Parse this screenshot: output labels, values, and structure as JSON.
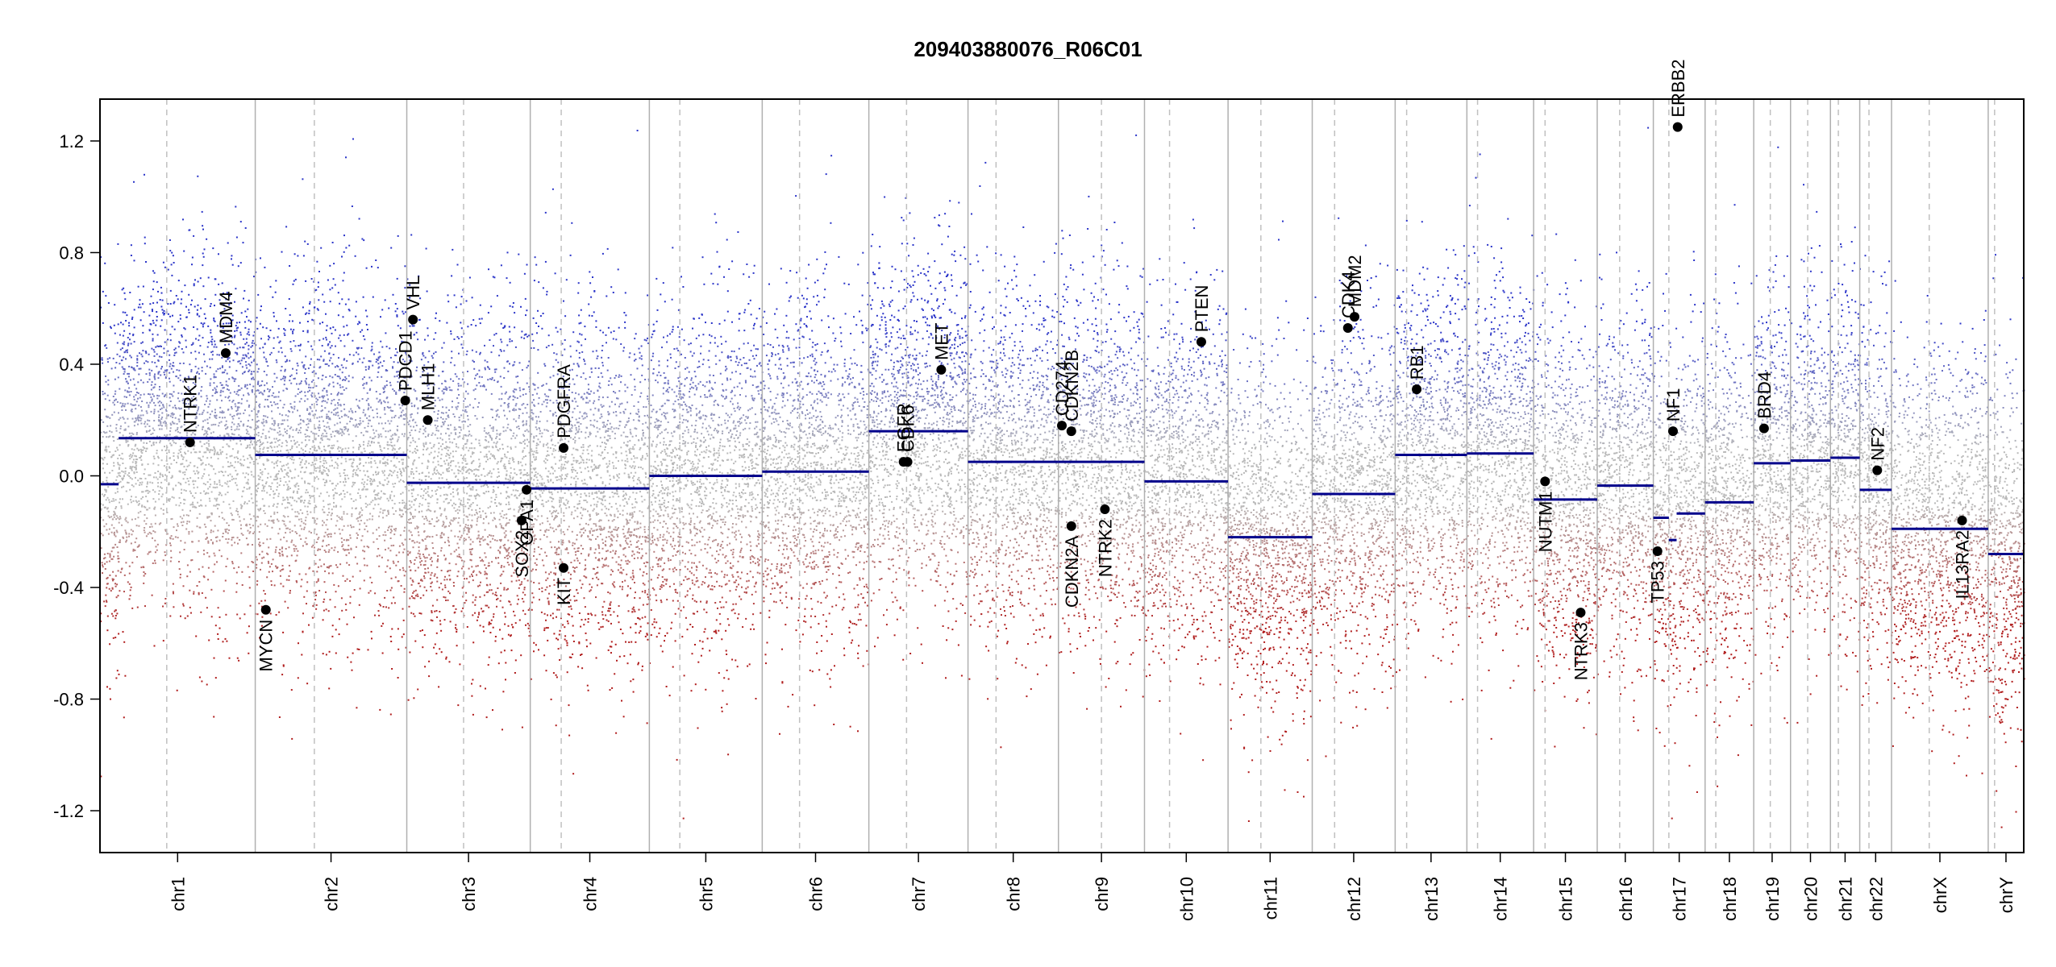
{
  "chart_data": {
    "type": "scatter",
    "title": "209403880076_R06C01",
    "xlabel": "",
    "ylabel": "",
    "ylim": [
      -1.35,
      1.35
    ],
    "y_ticks": [
      1.2,
      0.8,
      0.4,
      0.0,
      -0.4,
      -0.8,
      -1.2
    ],
    "y_tick_labels": [
      "1.2",
      "0.8",
      "0.4",
      "0.0",
      "-0.4",
      "-0.8",
      "-1.2"
    ],
    "grid": false,
    "colors": {
      "gain": "#2b35c9",
      "loss": "#b01c1c",
      "neutral": "#b9b9b9",
      "segment": "#00008b",
      "separator": "#b0b0b0",
      "centromere": "#c0c0c0",
      "gene_point": "#000000"
    },
    "chromosomes": [
      {
        "name": "chr1",
        "size": 249,
        "centromere": 0.43
      },
      {
        "name": "chr2",
        "size": 243,
        "centromere": 0.39
      },
      {
        "name": "chr3",
        "size": 198,
        "centromere": 0.46
      },
      {
        "name": "chr4",
        "size": 191,
        "centromere": 0.26
      },
      {
        "name": "chr5",
        "size": 181,
        "centromere": 0.27
      },
      {
        "name": "chr6",
        "size": 171,
        "centromere": 0.35
      },
      {
        "name": "chr7",
        "size": 159,
        "centromere": 0.38
      },
      {
        "name": "chr8",
        "size": 145,
        "centromere": 0.31
      },
      {
        "name": "chr9",
        "size": 138,
        "centromere": 0.5
      },
      {
        "name": "chr10",
        "size": 134,
        "centromere": 0.3
      },
      {
        "name": "chr11",
        "size": 135,
        "centromere": 0.39
      },
      {
        "name": "chr12",
        "size": 133,
        "centromere": 0.27
      },
      {
        "name": "chr13",
        "size": 115,
        "centromere": 0.16
      },
      {
        "name": "chr14",
        "size": 107,
        "centromere": 0.16
      },
      {
        "name": "chr15",
        "size": 102,
        "centromere": 0.18
      },
      {
        "name": "chr16",
        "size": 90,
        "centromere": 0.4
      },
      {
        "name": "chr17",
        "size": 83,
        "centromere": 0.3
      },
      {
        "name": "chr18",
        "size": 78,
        "centromere": 0.22
      },
      {
        "name": "chr19",
        "size": 59,
        "centromere": 0.45
      },
      {
        "name": "chr20",
        "size": 64,
        "centromere": 0.43
      },
      {
        "name": "chr21",
        "size": 47,
        "centromere": 0.27
      },
      {
        "name": "chr22",
        "size": 51,
        "centromere": 0.29
      },
      {
        "name": "chrX",
        "size": 155,
        "centromere": 0.39
      },
      {
        "name": "chrY",
        "size": 57,
        "centromere": 0.18
      }
    ],
    "segments": [
      {
        "chr": "chr1",
        "start": 0,
        "end": 0.12,
        "value": -0.03
      },
      {
        "chr": "chr1",
        "start": 0.12,
        "end": 1,
        "value": 0.135
      },
      {
        "chr": "chr2",
        "start": 0,
        "end": 1,
        "value": 0.075
      },
      {
        "chr": "chr3",
        "start": 0,
        "end": 1,
        "value": -0.025
      },
      {
        "chr": "chr4",
        "start": 0,
        "end": 1,
        "value": -0.045
      },
      {
        "chr": "chr5",
        "start": 0,
        "end": 1,
        "value": 0.0
      },
      {
        "chr": "chr6",
        "start": 0,
        "end": 1,
        "value": 0.015
      },
      {
        "chr": "chr7",
        "start": 0,
        "end": 1,
        "value": 0.16
      },
      {
        "chr": "chr8",
        "start": 0,
        "end": 1,
        "value": 0.05
      },
      {
        "chr": "chr9",
        "start": 0,
        "end": 1,
        "value": 0.05
      },
      {
        "chr": "chr10",
        "start": 0,
        "end": 1,
        "value": -0.02
      },
      {
        "chr": "chr11",
        "start": 0,
        "end": 1,
        "value": -0.22
      },
      {
        "chr": "chr12",
        "start": 0,
        "end": 1,
        "value": -0.065
      },
      {
        "chr": "chr13",
        "start": 0,
        "end": 1,
        "value": 0.075
      },
      {
        "chr": "chr14",
        "start": 0,
        "end": 1,
        "value": 0.08
      },
      {
        "chr": "chr15",
        "start": 0,
        "end": 1,
        "value": -0.085
      },
      {
        "chr": "chr16",
        "start": 0,
        "end": 1,
        "value": -0.035
      },
      {
        "chr": "chr17",
        "start": 0,
        "end": 0.3,
        "value": -0.15
      },
      {
        "chr": "chr17",
        "start": 0.3,
        "end": 0.45,
        "value": -0.23
      },
      {
        "chr": "chr17",
        "start": 0.45,
        "end": 1,
        "value": -0.135
      },
      {
        "chr": "chr18",
        "start": 0,
        "end": 1,
        "value": -0.095
      },
      {
        "chr": "chr19",
        "start": 0,
        "end": 1,
        "value": 0.045
      },
      {
        "chr": "chr20",
        "start": 0,
        "end": 1,
        "value": 0.055
      },
      {
        "chr": "chr21",
        "start": 0,
        "end": 1,
        "value": 0.065
      },
      {
        "chr": "chr22",
        "start": 0,
        "end": 1,
        "value": -0.05
      },
      {
        "chr": "chrX",
        "start": 0,
        "end": 1,
        "value": -0.19
      },
      {
        "chr": "chrY",
        "start": 0,
        "end": 1,
        "value": -0.28
      }
    ],
    "genes": [
      {
        "label": "NTRK1",
        "chr": "chr1",
        "pos": 0.58,
        "value": 0.12
      },
      {
        "label": "MDM4",
        "chr": "chr1",
        "pos": 0.81,
        "value": 0.44
      },
      {
        "label": "MYCN",
        "chr": "chr2",
        "pos": 0.07,
        "value": -0.48
      },
      {
        "label": "PDCD1",
        "chr": "chr2",
        "pos": 0.99,
        "value": 0.27
      },
      {
        "label": "VHL",
        "chr": "chr3",
        "pos": 0.05,
        "value": 0.56
      },
      {
        "label": "MLH1",
        "chr": "chr3",
        "pos": 0.17,
        "value": 0.2
      },
      {
        "label": "SOX2",
        "chr": "chr3",
        "pos": 0.93,
        "value": -0.16
      },
      {
        "label": "OPA1",
        "chr": "chr3",
        "pos": 0.97,
        "value": -0.05
      },
      {
        "label": "PDGFRA",
        "chr": "chr4",
        "pos": 0.28,
        "value": 0.1
      },
      {
        "label": "KIT",
        "chr": "chr4",
        "pos": 0.28,
        "value": -0.33
      },
      {
        "label": "EGFR",
        "chr": "chr7",
        "pos": 0.35,
        "value": 0.05
      },
      {
        "label": "CDK6",
        "chr": "chr7",
        "pos": 0.39,
        "value": 0.05
      },
      {
        "label": "MET",
        "chr": "chr7",
        "pos": 0.73,
        "value": 0.38
      },
      {
        "label": "CD274",
        "chr": "chr9",
        "pos": 0.04,
        "value": 0.18
      },
      {
        "label": "CDKN2B",
        "chr": "chr9",
        "pos": 0.15,
        "value": 0.16
      },
      {
        "label": "CDKN2A",
        "chr": "chr9",
        "pos": 0.15,
        "value": -0.18
      },
      {
        "label": "NTRK2",
        "chr": "chr9",
        "pos": 0.54,
        "value": -0.12
      },
      {
        "label": "PTEN",
        "chr": "chr10",
        "pos": 0.68,
        "value": 0.48
      },
      {
        "label": "CDK4",
        "chr": "chr12",
        "pos": 0.43,
        "value": 0.53
      },
      {
        "label": "MDM2",
        "chr": "chr12",
        "pos": 0.51,
        "value": 0.57
      },
      {
        "label": "RB1",
        "chr": "chr13",
        "pos": 0.3,
        "value": 0.31
      },
      {
        "label": "NUTM1",
        "chr": "chr15",
        "pos": 0.18,
        "value": -0.02
      },
      {
        "label": "NTRK3",
        "chr": "chr15",
        "pos": 0.74,
        "value": -0.49
      },
      {
        "label": "TP53",
        "chr": "chr17",
        "pos": 0.08,
        "value": -0.27
      },
      {
        "label": "NF1",
        "chr": "chr17",
        "pos": 0.38,
        "value": 0.16
      },
      {
        "label": "ERBB2",
        "chr": "chr17",
        "pos": 0.47,
        "value": 1.25
      },
      {
        "label": "BRD4",
        "chr": "chr19",
        "pos": 0.28,
        "value": 0.17
      },
      {
        "label": "NF2",
        "chr": "chr22",
        "pos": 0.55,
        "value": 0.02
      },
      {
        "label": "IL13RA2",
        "chr": "chrX",
        "pos": 0.73,
        "value": -0.16
      }
    ]
  }
}
